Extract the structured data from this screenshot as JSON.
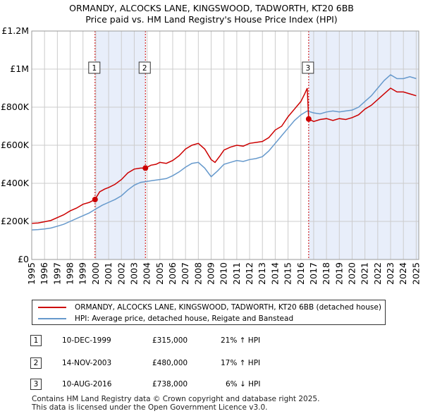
{
  "chart_data": {
    "type": "line",
    "title": "ORMANDY, ALCOCKS LANE, KINGSWOOD, TADWORTH, KT20 6BB",
    "subtitle": "Price paid vs. HM Land Registry's House Price Index (HPI)",
    "xlabel": "",
    "ylabel": "",
    "xlim": [
      1995,
      2025.2
    ],
    "ylim": [
      0,
      1200000
    ],
    "y_ticks": [
      {
        "value": 0,
        "label": "£0"
      },
      {
        "value": 200000,
        "label": "£200K"
      },
      {
        "value": 400000,
        "label": "£400K"
      },
      {
        "value": 600000,
        "label": "£600K"
      },
      {
        "value": 800000,
        "label": "£800K"
      },
      {
        "value": 1000000,
        "label": "£1M"
      },
      {
        "value": 1200000,
        "label": "£1.2M"
      }
    ],
    "x_ticks": [
      1995,
      1996,
      1997,
      1998,
      1999,
      2000,
      2001,
      2002,
      2003,
      2004,
      2005,
      2006,
      2007,
      2008,
      2009,
      2010,
      2011,
      2012,
      2013,
      2014,
      2015,
      2016,
      2017,
      2018,
      2019,
      2020,
      2021,
      2022,
      2023,
      2024,
      2025
    ],
    "x_tick_labels": [
      "1995",
      "1996",
      "1997",
      "1998",
      "1999",
      "2000",
      "2001",
      "2002",
      "2003",
      "2004",
      "2005",
      "2006",
      "2007",
      "2008",
      "2009",
      "2010",
      "2011",
      "2012",
      "2013",
      "2014",
      "2015",
      "2016",
      "2017",
      "2018",
      "2019",
      "2020",
      "2021",
      "2022",
      "2023",
      "2024",
      "2025"
    ],
    "grid": true,
    "shaded_periods": [
      {
        "from": 1999.94,
        "to": 2003.87
      },
      {
        "from": 2016.61,
        "to": 2025.2
      }
    ],
    "series": [
      {
        "name": "ORMANDY, ALCOCKS LANE, KINGSWOOD, TADWORTH, KT20 6BB (detached house)",
        "color": "#cc0000",
        "x": [
          1995,
          1995.5,
          1996,
          1996.5,
          1997,
          1997.5,
          1998,
          1998.5,
          1999,
          1999.5,
          1999.94,
          2000.3,
          2000.7,
          2001,
          2001.5,
          2002,
          2002.5,
          2003,
          2003.5,
          2003.87,
          2004.3,
          2004.7,
          2005,
          2005.5,
          2006,
          2006.5,
          2007,
          2007.5,
          2008,
          2008.5,
          2009,
          2009.3,
          2009.7,
          2010,
          2010.5,
          2011,
          2011.5,
          2012,
          2012.5,
          2013,
          2013.5,
          2014,
          2014.5,
          2015,
          2015.5,
          2016,
          2016.3,
          2016.5,
          2016.61,
          2017,
          2017.5,
          2018,
          2018.5,
          2019,
          2019.5,
          2020,
          2020.5,
          2021,
          2021.5,
          2022,
          2022.5,
          2023,
          2023.5,
          2024,
          2024.5,
          2025
        ],
        "values": [
          190000,
          192000,
          198000,
          205000,
          220000,
          235000,
          255000,
          270000,
          290000,
          300000,
          315000,
          355000,
          370000,
          378000,
          395000,
          420000,
          455000,
          475000,
          480000,
          480000,
          495000,
          500000,
          510000,
          505000,
          520000,
          545000,
          580000,
          600000,
          610000,
          580000,
          525000,
          510000,
          545000,
          575000,
          590000,
          600000,
          595000,
          610000,
          615000,
          620000,
          640000,
          680000,
          700000,
          750000,
          790000,
          830000,
          870000,
          900000,
          738000,
          725000,
          735000,
          740000,
          730000,
          740000,
          735000,
          745000,
          760000,
          790000,
          810000,
          840000,
          870000,
          900000,
          880000,
          880000,
          870000,
          860000
        ]
      },
      {
        "name": "HPI: Average price, detached house, Reigate and Banstead",
        "color": "#6699cc",
        "x": [
          1995,
          1995.5,
          1996,
          1996.5,
          1997,
          1997.5,
          1998,
          1998.5,
          1999,
          1999.5,
          2000,
          2000.5,
          2001,
          2001.5,
          2002,
          2002.5,
          2003,
          2003.5,
          2004,
          2004.5,
          2005,
          2005.5,
          2006,
          2006.5,
          2007,
          2007.5,
          2008,
          2008.5,
          2009,
          2009.5,
          2010,
          2010.5,
          2011,
          2011.5,
          2012,
          2012.5,
          2013,
          2013.5,
          2014,
          2014.5,
          2015,
          2015.5,
          2016,
          2016.5,
          2017,
          2017.5,
          2018,
          2018.5,
          2019,
          2019.5,
          2020,
          2020.5,
          2021,
          2021.5,
          2022,
          2022.5,
          2023,
          2023.5,
          2024,
          2024.5,
          2025
        ],
        "values": [
          155000,
          157000,
          160000,
          165000,
          175000,
          185000,
          200000,
          215000,
          230000,
          245000,
          265000,
          285000,
          300000,
          315000,
          335000,
          365000,
          390000,
          405000,
          410000,
          415000,
          420000,
          425000,
          440000,
          460000,
          485000,
          505000,
          510000,
          480000,
          435000,
          465000,
          500000,
          510000,
          520000,
          515000,
          525000,
          530000,
          540000,
          570000,
          610000,
          650000,
          690000,
          730000,
          760000,
          780000,
          770000,
          765000,
          775000,
          780000,
          775000,
          780000,
          785000,
          800000,
          830000,
          860000,
          900000,
          940000,
          970000,
          950000,
          950000,
          960000,
          950000
        ]
      }
    ],
    "markers": [
      {
        "label": "1",
        "x": 1999.94,
        "y": 315000
      },
      {
        "label": "2",
        "x": 2003.87,
        "y": 480000
      },
      {
        "label": "3",
        "x": 2016.61,
        "y": 738000
      }
    ]
  },
  "legend": {
    "items": [
      {
        "label": "ORMANDY, ALCOCKS LANE, KINGSWOOD, TADWORTH, KT20 6BB (detached house)",
        "color": "#cc0000"
      },
      {
        "label": "HPI: Average price, detached house, Reigate and Banstead",
        "color": "#6699cc"
      }
    ]
  },
  "transactions": [
    {
      "num": "1",
      "date": "10-DEC-1999",
      "price": "£315,000",
      "hpi": "21% ↑ HPI"
    },
    {
      "num": "2",
      "date": "14-NOV-2003",
      "price": "£480,000",
      "hpi": "17% ↑ HPI"
    },
    {
      "num": "3",
      "date": "10-AUG-2016",
      "price": "£738,000",
      "hpi": "6% ↓ HPI"
    }
  ],
  "footer": {
    "line1": "Contains HM Land Registry data © Crown copyright and database right 2025.",
    "line2": "This data is licensed under the Open Government Licence v3.0."
  }
}
